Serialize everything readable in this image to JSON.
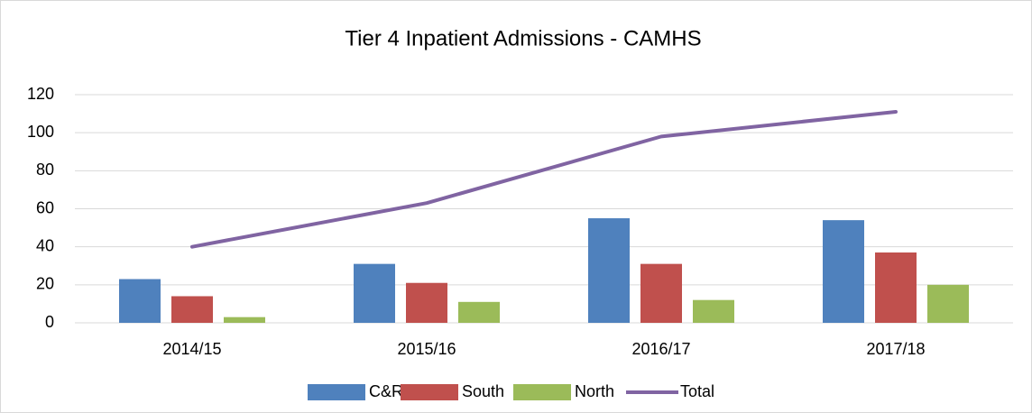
{
  "chart_data": {
    "type": "bar_line",
    "title": "Tier 4 Inpatient Admissions - CAMHS",
    "categories": [
      "2014/15",
      "2015/16",
      "2016/17",
      "2017/18"
    ],
    "series": [
      {
        "name": "C&R",
        "color": "#4f81bd",
        "type": "bar",
        "values": [
          23,
          31,
          55,
          54
        ]
      },
      {
        "name": "South",
        "color": "#c0504d",
        "type": "bar",
        "values": [
          14,
          21,
          31,
          37
        ]
      },
      {
        "name": "North",
        "color": "#9bbb59",
        "type": "bar",
        "values": [
          3,
          11,
          12,
          20
        ]
      },
      {
        "name": "Total",
        "color": "#8064a2",
        "type": "line",
        "values": [
          40,
          63,
          98,
          111
        ]
      }
    ],
    "ylim": [
      0,
      120
    ],
    "yticks": [
      0,
      20,
      40,
      60,
      80,
      100,
      120
    ],
    "grid": true,
    "legend": "bottom"
  }
}
